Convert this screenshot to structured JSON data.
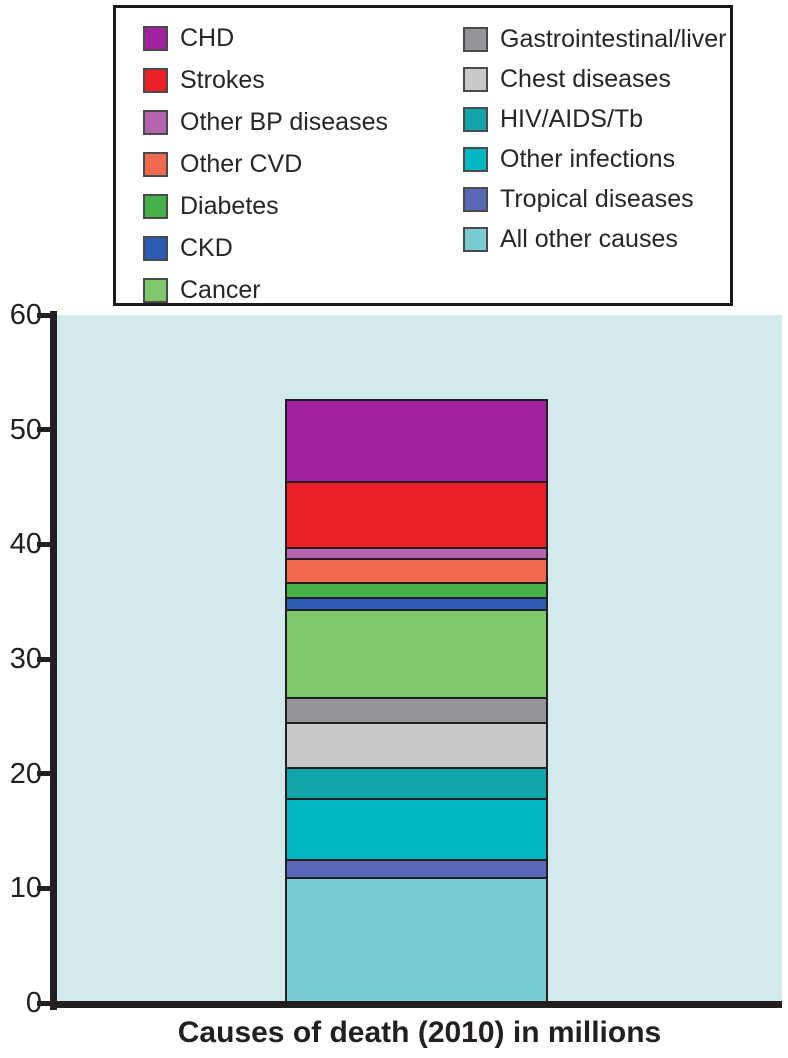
{
  "title": "Causes of death (2010) in millions",
  "colors": {
    "plot_background": "#d2eaec",
    "axis": "#231f20",
    "legend_border": "#1a1a1a",
    "page_background": "#ffffff"
  },
  "chart_data": {
    "type": "bar",
    "stacked": true,
    "title": "Causes of death (2010) in millions",
    "xlabel": "Causes of death (2010) in millions",
    "ylabel": "",
    "ylim": [
      0,
      60
    ],
    "yticks": [
      0,
      10,
      20,
      30,
      40,
      50,
      60
    ],
    "grid": false,
    "legend_position": "top",
    "legend_split": 7,
    "total_millions": 52.7,
    "series": [
      {
        "name": "CHD",
        "value": 7.3,
        "color": "#a2219e"
      },
      {
        "name": "Strokes",
        "value": 5.9,
        "color": "#ec2027"
      },
      {
        "name": "Other BP diseases",
        "value": 0.8,
        "color": "#b565ae"
      },
      {
        "name": "Other CVD",
        "value": 2.0,
        "color": "#f0694d"
      },
      {
        "name": "Diabetes",
        "value": 1.2,
        "color": "#45b14a"
      },
      {
        "name": "CKD",
        "value": 0.9,
        "color": "#2b5cb4"
      },
      {
        "name": "Cancer",
        "value": 7.9,
        "color": "#7ec96e"
      },
      {
        "name": "Gastrointestinal/liver",
        "value": 2.1,
        "color": "#939598"
      },
      {
        "name": "Chest diseases",
        "value": 3.9,
        "color": "#c7c9cb"
      },
      {
        "name": "HIV/AIDS/Tb",
        "value": 2.7,
        "color": "#10a5a8"
      },
      {
        "name": "Other infections",
        "value": 5.4,
        "color": "#00b7c3"
      },
      {
        "name": "Tropical diseases",
        "value": 1.4,
        "color": "#5a68b8"
      },
      {
        "name": "All other causes",
        "value": 11.2,
        "color": "#79cdd2"
      }
    ]
  }
}
